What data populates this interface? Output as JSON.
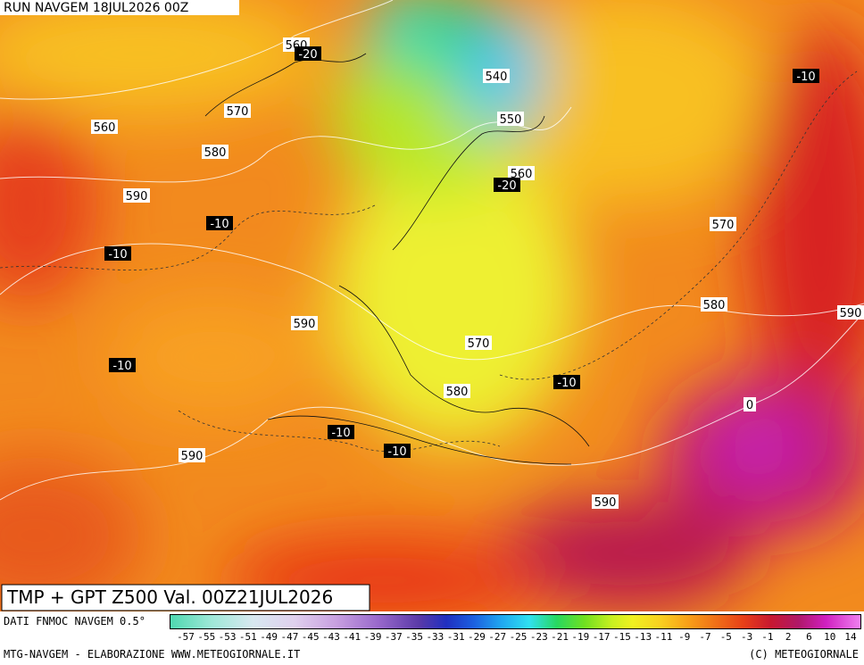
{
  "header": {
    "run": "RUN NAVGEM 18JUL2026 00Z"
  },
  "map": {
    "title": "TMP + GPT Z500 Val. 00Z21JUL2026",
    "labels": [
      "560",
      "-20",
      "540",
      "570",
      "550",
      "560",
      "580",
      "560",
      "-20",
      "590",
      "-10",
      "570",
      "-10",
      "-10",
      "580",
      "590",
      "590",
      "570",
      "-10",
      "-10",
      "580",
      "0",
      "-10",
      "-10",
      "590",
      "590"
    ]
  },
  "legend": {
    "source": "DATI FNMOC NAVGEM 0.5°",
    "ticks": [
      "-57",
      "-55",
      "-53",
      "-51",
      "-49",
      "-47",
      "-45",
      "-43",
      "-41",
      "-39",
      "-37",
      "-35",
      "-33",
      "-31",
      "-29",
      "-27",
      "-25",
      "-23",
      "-21",
      "-19",
      "-17",
      "-15",
      "-13",
      "-11",
      "-9",
      "-7",
      "-5",
      "-3",
      "-1",
      "2",
      "6",
      "10",
      "14"
    ]
  },
  "footer": {
    "left": "MTG-NAVGEM - ELABORAZIONE WWW.METEOGIORNALE.IT",
    "right": "(C) METEOGIORNALE"
  }
}
